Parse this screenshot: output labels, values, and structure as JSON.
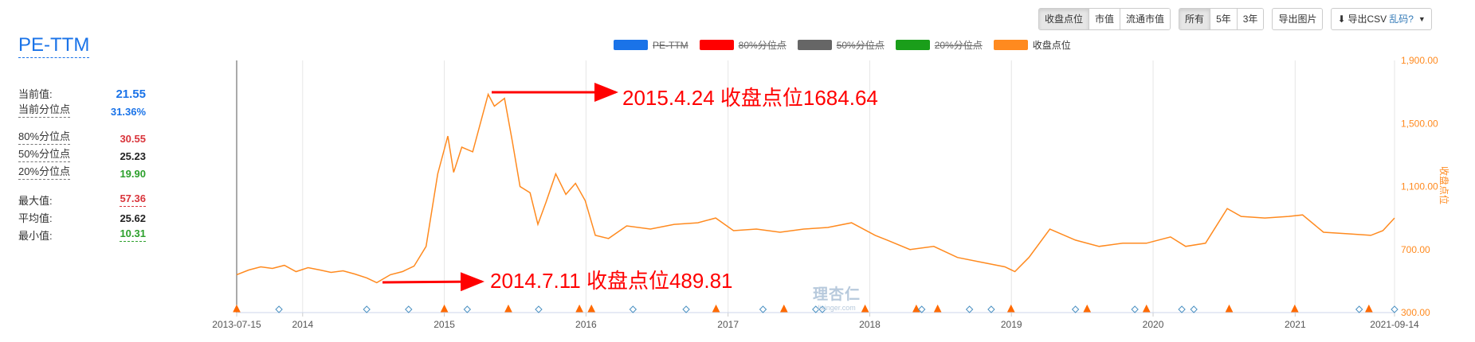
{
  "toolbar": {
    "metric_buttons": [
      "收盘点位",
      "市值",
      "流通市值"
    ],
    "range_buttons": [
      "所有",
      "5年",
      "3年"
    ],
    "export_image": "导出图片",
    "export_csv": "导出CSV",
    "garbled": "乱码?",
    "icons": {
      "download": "download-icon",
      "caret": "caret-down-icon"
    }
  },
  "title": "PE-TTM",
  "stats": {
    "current_label": "当前值:",
    "current_value": "21.55",
    "percentile_label": "当前分位点",
    "percentile_value": "31.36%",
    "p80_label": "80%分位点",
    "p80_value": "30.55",
    "p50_label": "50%分位点",
    "p50_value": "25.23",
    "p20_label": "20%分位点",
    "p20_value": "19.90",
    "max_label": "最大值:",
    "max_value": "57.36",
    "avg_label": "平均值:",
    "avg_value": "25.62",
    "min_label": "最小值:",
    "min_value": "10.31",
    "colors": {
      "blue": "#1a73e8",
      "red": "#d9343b",
      "dark": "#222222",
      "green": "#2ca02c"
    }
  },
  "legend": [
    {
      "label": "PE-TTM",
      "color": "#1a73e8",
      "enabled": false
    },
    {
      "label": "80%分位点",
      "color": "#ff0000",
      "enabled": false
    },
    {
      "label": "50%分位点",
      "color": "#666666",
      "enabled": false
    },
    {
      "label": "20%分位点",
      "color": "#1a9e1a",
      "enabled": false
    },
    {
      "label": "收盘点位",
      "color": "#ff8a1f",
      "enabled": true
    }
  ],
  "annotations": [
    {
      "text": "2015.4.24 收盘点位1684.64",
      "color": "#ff0000"
    },
    {
      "text": "2014.7.11  收盘点位489.81",
      "color": "#ff0000"
    }
  ],
  "watermark": {
    "main": "理杏仁",
    "sub": "lixinger.com"
  },
  "chart_data": {
    "type": "line",
    "title": "",
    "xlabel": "",
    "ylabel": "收盘点位",
    "x_start": "2013-07-15",
    "x_end": "2021-09-14",
    "x_ticks": [
      "2013-07-15",
      "2014",
      "2015",
      "2016",
      "2017",
      "2018",
      "2019",
      "2020",
      "2021",
      "2021-09-14"
    ],
    "y_ticks": [
      "300.00",
      "700.00",
      "1,100.00",
      "1,500.00",
      "1,900.00"
    ],
    "ylim": [
      300,
      1900
    ],
    "grid": true,
    "legend_position": "top-center",
    "series": [
      {
        "name": "收盘点位",
        "color": "#ff8a1f",
        "points": [
          [
            "2013-07-15",
            540
          ],
          [
            "2013-08-15",
            570
          ],
          [
            "2013-09-15",
            590
          ],
          [
            "2013-10-15",
            580
          ],
          [
            "2013-11-15",
            600
          ],
          [
            "2013-12-15",
            560
          ],
          [
            "2014-01-15",
            585
          ],
          [
            "2014-02-15",
            570
          ],
          [
            "2014-03-15",
            555
          ],
          [
            "2014-04-15",
            565
          ],
          [
            "2014-05-15",
            545
          ],
          [
            "2014-06-15",
            520
          ],
          [
            "2014-07-11",
            490
          ],
          [
            "2014-08-15",
            540
          ],
          [
            "2014-09-15",
            560
          ],
          [
            "2014-10-15",
            595
          ],
          [
            "2014-11-15",
            720
          ],
          [
            "2014-12-15",
            1180
          ],
          [
            "2015-01-10",
            1420
          ],
          [
            "2015-01-25",
            1190
          ],
          [
            "2015-02-15",
            1350
          ],
          [
            "2015-03-15",
            1320
          ],
          [
            "2015-04-24",
            1685
          ],
          [
            "2015-05-10",
            1610
          ],
          [
            "2015-06-05",
            1660
          ],
          [
            "2015-06-25",
            1390
          ],
          [
            "2015-07-15",
            1100
          ],
          [
            "2015-08-10",
            1060
          ],
          [
            "2015-08-30",
            860
          ],
          [
            "2015-09-20",
            1000
          ],
          [
            "2015-10-15",
            1180
          ],
          [
            "2015-11-10",
            1050
          ],
          [
            "2015-12-05",
            1120
          ],
          [
            "2015-12-30",
            1010
          ],
          [
            "2016-01-25",
            790
          ],
          [
            "2016-02-28",
            770
          ],
          [
            "2016-04-15",
            850
          ],
          [
            "2016-06-15",
            830
          ],
          [
            "2016-08-15",
            860
          ],
          [
            "2016-10-15",
            870
          ],
          [
            "2016-11-30",
            900
          ],
          [
            "2017-01-15",
            820
          ],
          [
            "2017-03-15",
            830
          ],
          [
            "2017-05-15",
            810
          ],
          [
            "2017-07-15",
            830
          ],
          [
            "2017-09-15",
            840
          ],
          [
            "2017-11-15",
            870
          ],
          [
            "2018-01-15",
            790
          ],
          [
            "2018-02-15",
            760
          ],
          [
            "2018-04-15",
            700
          ],
          [
            "2018-06-15",
            720
          ],
          [
            "2018-08-15",
            650
          ],
          [
            "2018-10-15",
            620
          ],
          [
            "2018-12-15",
            590
          ],
          [
            "2019-01-10",
            560
          ],
          [
            "2019-02-15",
            650
          ],
          [
            "2019-04-10",
            830
          ],
          [
            "2019-06-15",
            760
          ],
          [
            "2019-08-15",
            720
          ],
          [
            "2019-10-15",
            740
          ],
          [
            "2019-12-15",
            740
          ],
          [
            "2020-02-15",
            780
          ],
          [
            "2020-03-25",
            720
          ],
          [
            "2020-05-15",
            740
          ],
          [
            "2020-07-10",
            960
          ],
          [
            "2020-08-15",
            910
          ],
          [
            "2020-10-15",
            900
          ],
          [
            "2020-12-15",
            910
          ],
          [
            "2021-01-20",
            920
          ],
          [
            "2021-03-15",
            810
          ],
          [
            "2021-05-15",
            800
          ],
          [
            "2021-07-15",
            790
          ],
          [
            "2021-08-15",
            820
          ],
          [
            "2021-09-14",
            900
          ]
        ]
      }
    ],
    "markers": {
      "orange_triangle_dates": [
        "2013-07-15",
        "2015-01-01",
        "2015-06-15",
        "2015-12-15",
        "2016-01-15",
        "2016-12-01",
        "2017-05-25",
        "2017-12-20",
        "2018-05-01",
        "2018-06-25",
        "2018-12-31",
        "2019-07-15",
        "2019-12-15",
        "2020-07-15",
        "2020-12-31",
        "2021-07-10"
      ],
      "blue_diamond_dates": [
        "2013-11-01",
        "2014-06-15",
        "2014-10-01",
        "2015-03-01",
        "2015-09-01",
        "2016-05-01",
        "2016-09-15",
        "2017-04-01",
        "2017-08-15",
        "2017-09-01",
        "2018-05-15",
        "2018-09-15",
        "2018-11-10",
        "2019-06-15",
        "2019-11-15",
        "2020-03-15",
        "2020-04-15",
        "2021-06-15",
        "2021-09-14"
      ]
    }
  }
}
